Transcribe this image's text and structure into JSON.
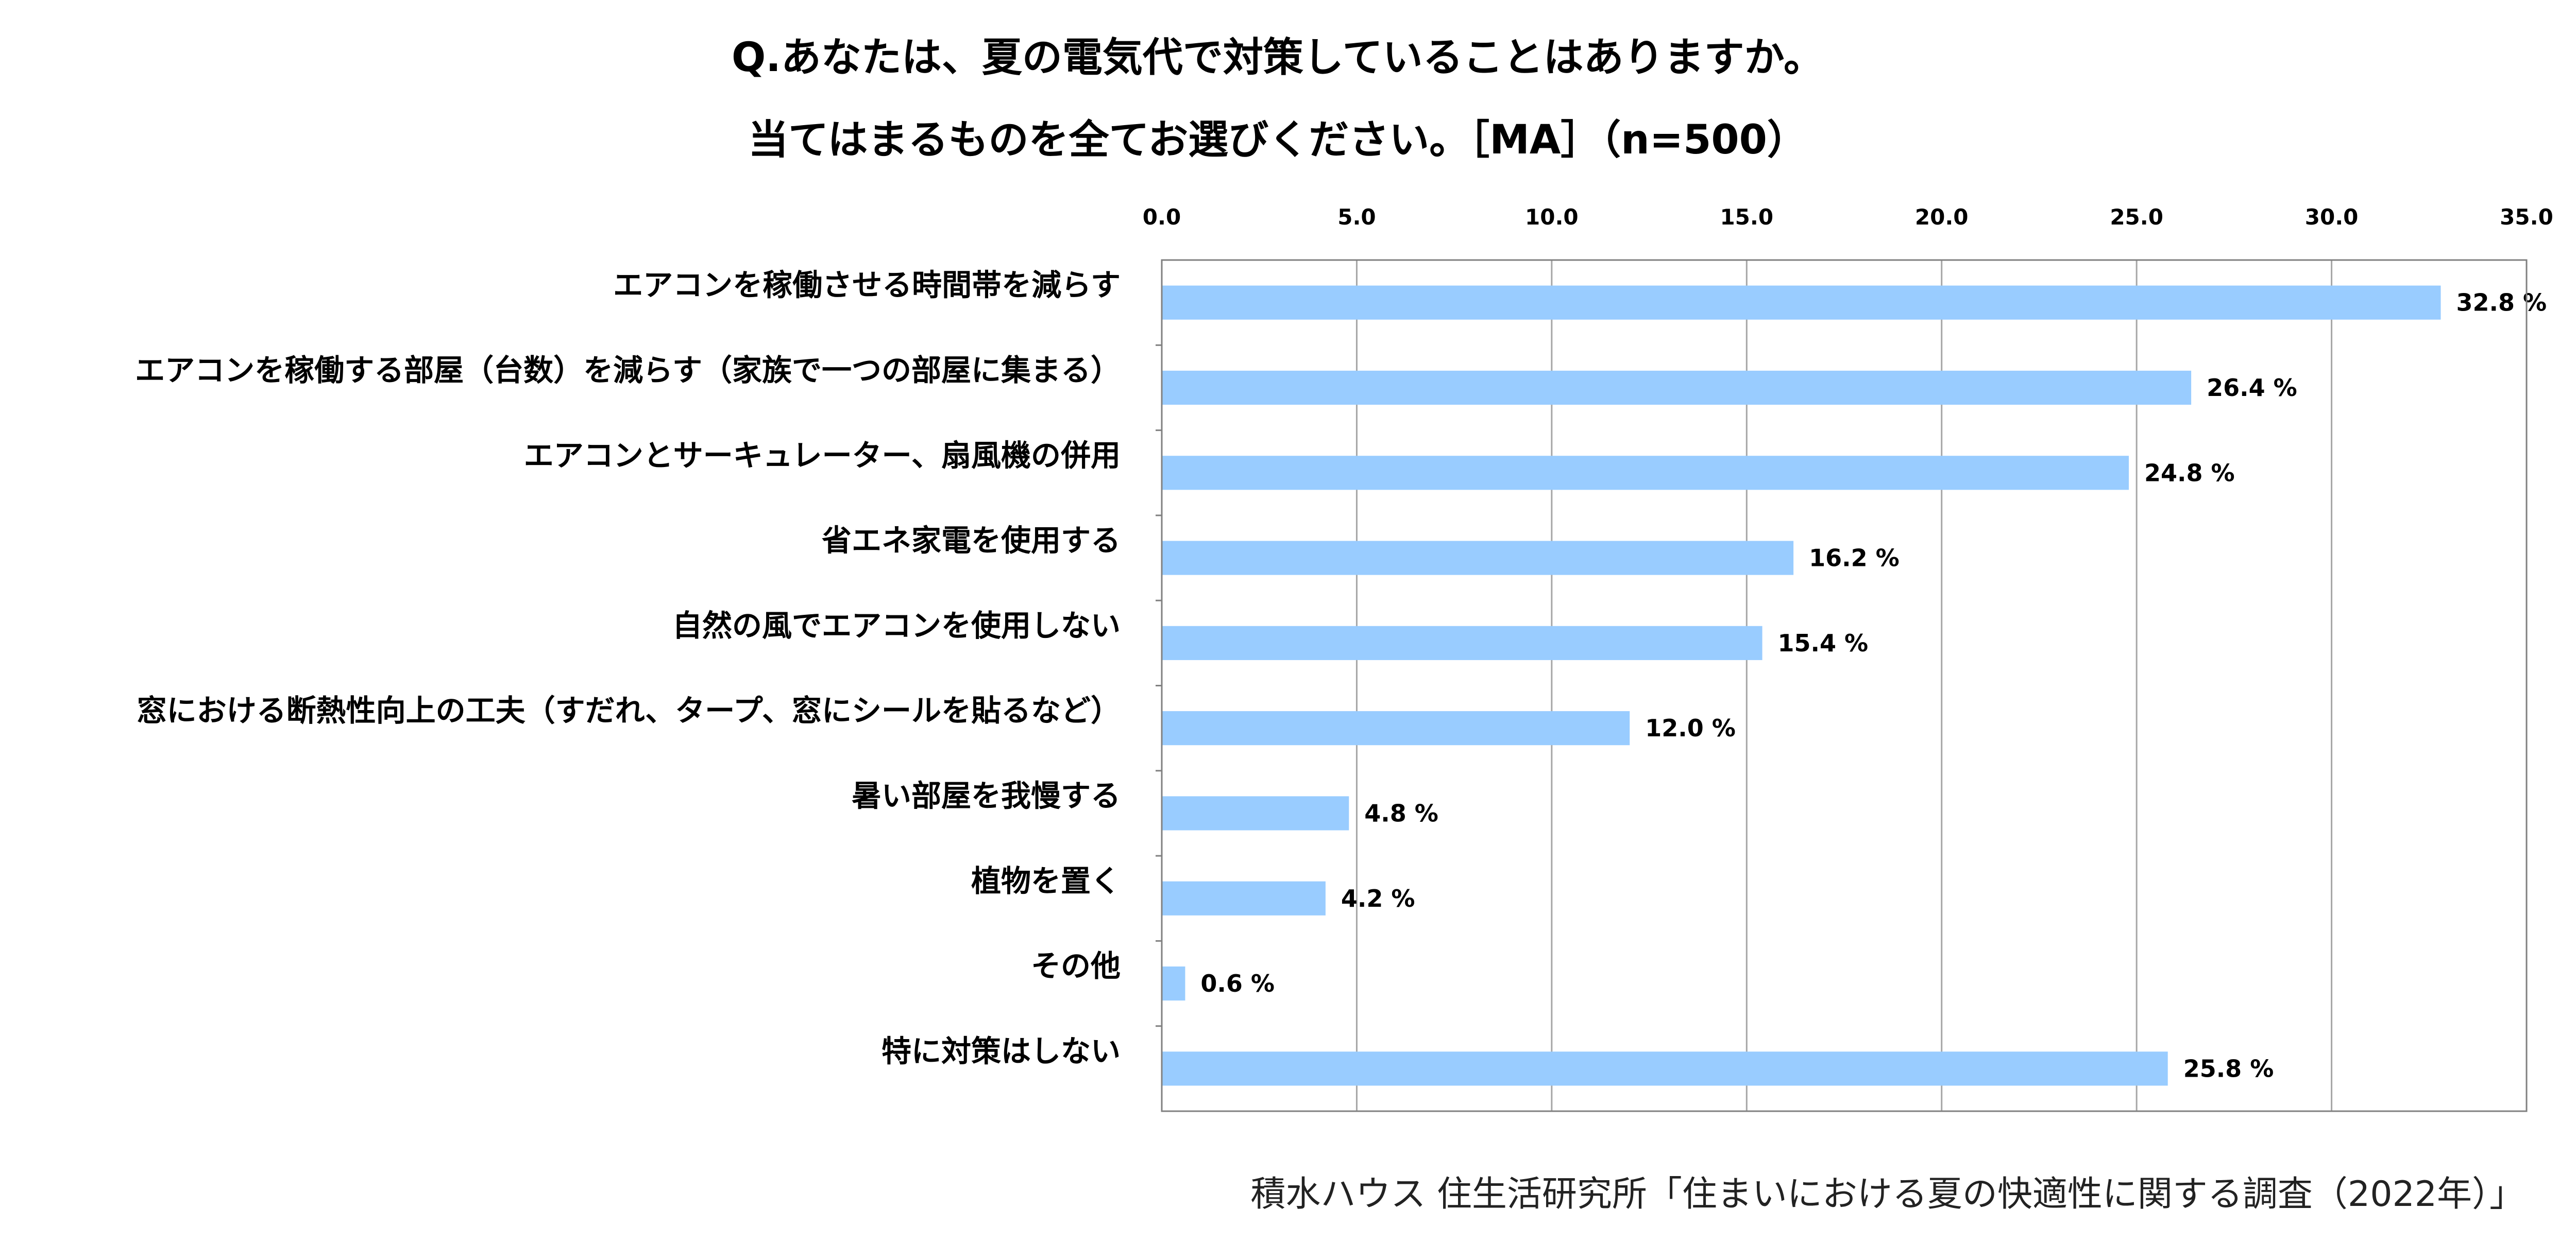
{
  "title_line1": "Q.あなたは、夏の電気代で対策していることはありますか。",
  "title_line2": "当てはまるものを全てお選びください。［MA］（n=500）",
  "source": "積水ハウス 住生活研究所「住まいにおける夏の快適性に関する調査（2022年）」",
  "colors": {
    "bar": "#99CCFF",
    "grid": "#A6A6A6",
    "axis": "#808080",
    "text": "#000000"
  },
  "chart_data": {
    "type": "bar",
    "orientation": "horizontal",
    "categories": [
      "エアコンを稼働させる時間帯を減らす",
      "エアコンを稼働する部屋（台数）を減らす（家族で一つの部屋に集まる）",
      "エアコンとサーキュレーター、扇風機の併用",
      "省エネ家電を使用する",
      "自然の風でエアコンを使用しない",
      "窓における断熱性向上の工夫（すだれ、タープ、窓にシールを貼るなど）",
      "暑い部屋を我慢する",
      "植物を置く",
      "その他",
      "特に対策はしない"
    ],
    "values": [
      32.8,
      26.4,
      24.8,
      16.2,
      15.4,
      12.0,
      4.8,
      4.2,
      0.6,
      25.8
    ],
    "value_labels": [
      "32.8 %",
      "26.4 %",
      "24.8 %",
      "16.2 %",
      "15.4 %",
      "12.0 %",
      "4.8 %",
      "4.2 %",
      "0.6 %",
      "25.8 %"
    ],
    "x_ticks": [
      "0.0",
      "5.0",
      "10.0",
      "15.0",
      "20.0",
      "25.0",
      "30.0",
      "35.0"
    ],
    "xlim": [
      0,
      35
    ],
    "x_axis_position": "top",
    "grid": true,
    "legend": "none"
  }
}
